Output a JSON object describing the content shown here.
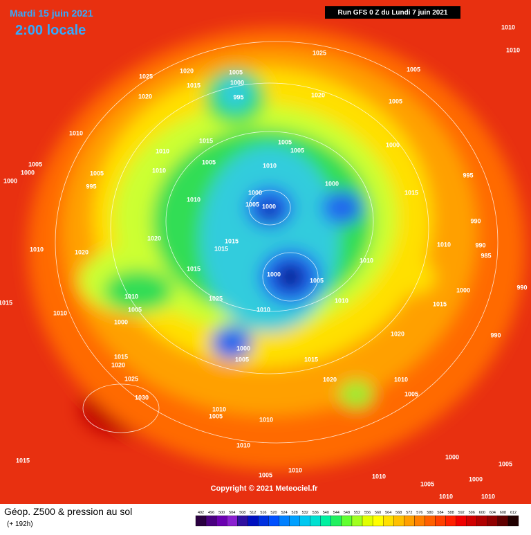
{
  "header": {
    "date": "Mardi 15 juin 2021",
    "time": "2:00 locale",
    "run": "Run GFS 0 Z du Lundi 7 juin 2021"
  },
  "footer": {
    "title": "Géop. Z500 & pression au sol",
    "lead": "(+ 192h)",
    "copyright": "Copyright © 2021 Meteociel.fr"
  },
  "legend": {
    "levels": [
      492,
      496,
      500,
      504,
      508,
      512,
      516,
      520,
      524,
      528,
      532,
      536,
      540,
      544,
      548,
      552,
      556,
      560,
      564,
      568,
      572,
      576,
      580,
      584,
      588,
      592,
      596,
      600,
      604,
      608,
      612
    ],
    "colors": [
      "#2a0040",
      "#4a0080",
      "#6a00b0",
      "#8a20d0",
      "#3010a0",
      "#0010c0",
      "#0030e0",
      "#0050ff",
      "#0080ff",
      "#00a0ff",
      "#00c8f0",
      "#00e0d0",
      "#00f0a0",
      "#20f060",
      "#60ff30",
      "#a0ff20",
      "#e0ff00",
      "#ffff00",
      "#ffe000",
      "#ffc000",
      "#ffa000",
      "#ff8000",
      "#ff6000",
      "#ff4000",
      "#ff2000",
      "#f00000",
      "#d00000",
      "#b00000",
      "#900000",
      "#600000",
      "#200000"
    ]
  },
  "isobar_labels": [
    1025,
    1020,
    1025,
    1015,
    1005,
    1000,
    995,
    1020,
    1020,
    1005,
    1005,
    1010,
    1010,
    1010,
    1015,
    1005,
    1005,
    1000,
    1010,
    1010,
    1005,
    1010,
    1005,
    1000,
    1005,
    1000,
    995,
    1000,
    1005,
    1000,
    1000,
    1015,
    995,
    1010,
    990,
    1020,
    1015,
    1015,
    1010,
    1020,
    1010,
    990,
    985,
    1010,
    1015,
    1000,
    1005,
    990,
    1000,
    1010,
    1005,
    1010,
    1015,
    1010,
    1025,
    1015,
    1010,
    1000,
    1020,
    990,
    1000,
    1005,
    1015,
    1020,
    1015,
    1025,
    1020,
    1010,
    1005,
    1030,
    1010,
    1005,
    1010,
    1010,
    1000,
    1015,
    1005,
    1010,
    1005,
    1010,
    1005,
    1010,
    1010,
    1000
  ]
}
